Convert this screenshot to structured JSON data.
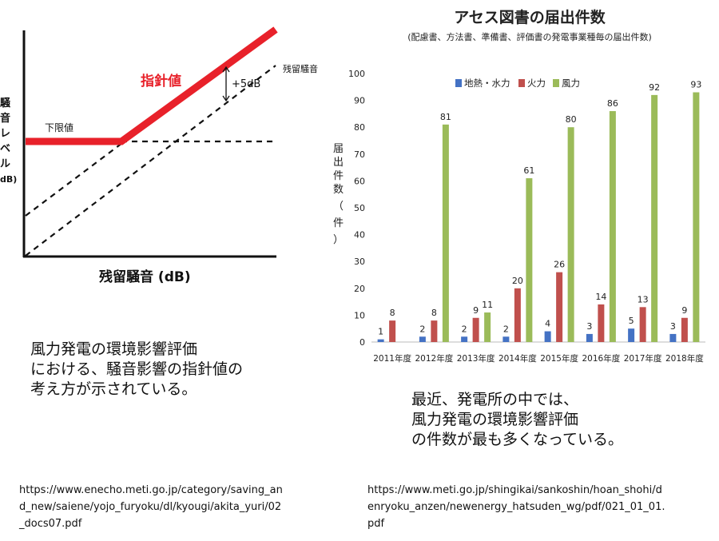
{
  "left_figure": {
    "y_label_chars": [
      "騒",
      "音",
      "レ",
      "ベ",
      "ル",
      "dB)"
    ],
    "x_label": "残留騒音 (dB)",
    "lower_limit_label": "下限値",
    "guideline_label": "指針値",
    "residual_label": "残留騒音",
    "offset_label": "+5dB",
    "colors": {
      "guideline": "#e8212a",
      "axis": "#111111"
    }
  },
  "chart_data": {
    "type": "bar",
    "title": "アセス図書の届出件数",
    "subtitle": "(配慮書、方法書、準備書、評価書の発電事業種毎の届出件数)",
    "ylabel_chars": [
      "届",
      "出",
      "件",
      "数",
      "（",
      "件",
      "）"
    ],
    "ylim": [
      0,
      100
    ],
    "yticks": [
      0,
      10,
      20,
      30,
      40,
      50,
      60,
      70,
      80,
      90,
      100
    ],
    "categories": [
      "2011年度",
      "2012年度",
      "2013年度",
      "2014年度",
      "2015年度",
      "2016年度",
      "2017年度",
      "2018年度"
    ],
    "series": [
      {
        "name": "地熱・水力",
        "color": "#4472c4",
        "values": [
          1,
          2,
          2,
          2,
          4,
          3,
          5,
          3
        ]
      },
      {
        "name": "火力",
        "color": "#c0504d",
        "values": [
          8,
          8,
          9,
          20,
          26,
          14,
          13,
          9
        ]
      },
      {
        "name": "風力",
        "color": "#9bbb59",
        "values": [
          0,
          81,
          11,
          61,
          80,
          86,
          92,
          93
        ]
      }
    ],
    "data_labels": [
      [
        "1",
        "2",
        "2",
        "2",
        "4",
        "3",
        "5",
        "3"
      ],
      [
        "8",
        "8",
        "9",
        "20",
        "26",
        "14",
        "13",
        "9"
      ],
      [
        "",
        "81",
        "11",
        "61",
        "80",
        "86",
        "92",
        "93"
      ]
    ],
    "legend_position": "top-left",
    "grid": false
  },
  "captions": {
    "left": [
      "風力発電の環境影響評価",
      "における、騒音影響の指針値の",
      "考え方が示されている。"
    ],
    "right": [
      "最近、発電所の中では、",
      "風力発電の環境影響評価",
      "の件数が最も多くなっている。"
    ]
  },
  "sources": {
    "left": [
      "https://www.enecho.meti.go.jp/category/saving_an",
      "d_new/saiene/yojo_furyoku/dl/kyougi/akita_yuri/02",
      "_docs07.pdf"
    ],
    "right": [
      "https://www.meti.go.jp/shingikai/sankoshin/hoan_shohi/d",
      "enryoku_anzen/newenergy_hatsuden_wg/pdf/021_01_01.",
      "pdf"
    ]
  }
}
